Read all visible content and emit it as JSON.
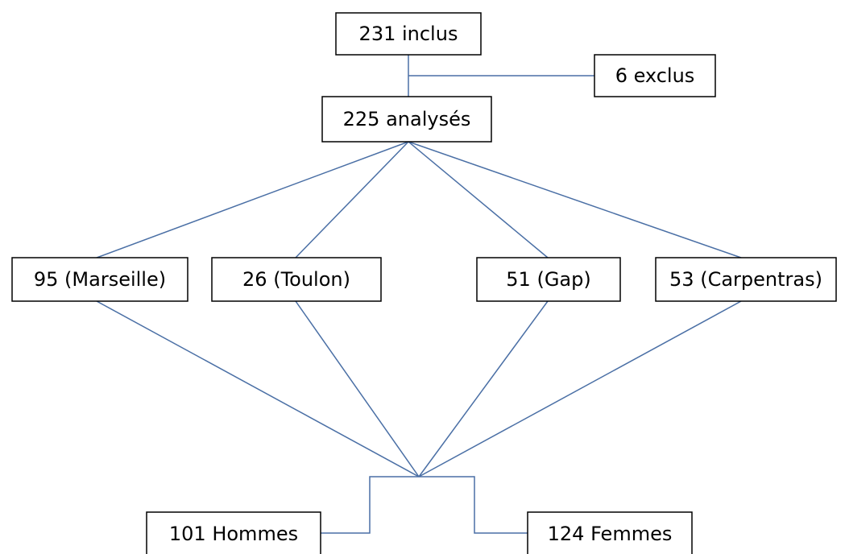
{
  "nodes": [
    {
      "label": "231 inclus"
    },
    {
      "label": "6 exclus"
    },
    {
      "label": "225 analysés"
    },
    {
      "label": "95 (Marseille)"
    },
    {
      "label": "26 (Toulon)"
    },
    {
      "label": "51 (Gap)"
    },
    {
      "label": "53 (Carpentras)"
    },
    {
      "label": "101 Hommes"
    },
    {
      "label": "124 Femmes"
    }
  ]
}
